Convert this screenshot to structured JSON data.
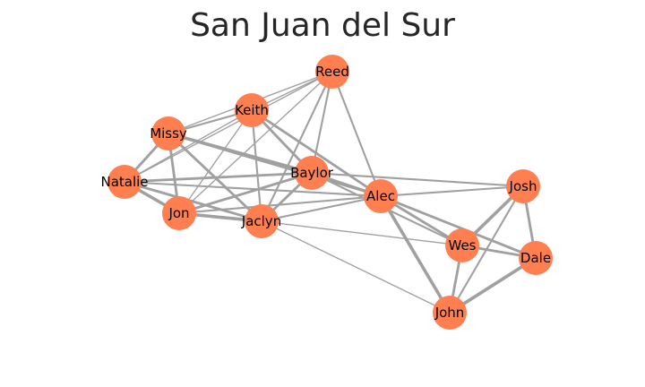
{
  "title": "San Juan del Sur",
  "colors": {
    "node_fill": "#ff7f50",
    "edge": "#a0a0a0",
    "label": "#000000",
    "title": "#262626"
  },
  "graph": {
    "nodes": [
      {
        "id": "Reed",
        "label": "Reed"
      },
      {
        "id": "Keith",
        "label": "Keith"
      },
      {
        "id": "Missy",
        "label": "Missy"
      },
      {
        "id": "Baylor",
        "label": "Baylor"
      },
      {
        "id": "Natalie",
        "label": "Natalie"
      },
      {
        "id": "Alec",
        "label": "Alec"
      },
      {
        "id": "Josh",
        "label": "Josh"
      },
      {
        "id": "Jon",
        "label": "Jon"
      },
      {
        "id": "Jaclyn",
        "label": "Jaclyn"
      },
      {
        "id": "Wes",
        "label": "Wes"
      },
      {
        "id": "Dale",
        "label": "Dale"
      },
      {
        "id": "John",
        "label": "John"
      }
    ],
    "edges": [
      {
        "source": "Reed",
        "target": "Keith",
        "weight": 1
      },
      {
        "source": "Reed",
        "target": "Missy",
        "weight": 1
      },
      {
        "source": "Reed",
        "target": "Baylor",
        "weight": 2
      },
      {
        "source": "Reed",
        "target": "Alec",
        "weight": 2
      },
      {
        "source": "Reed",
        "target": "Jaclyn",
        "weight": 2
      },
      {
        "source": "Reed",
        "target": "Jon",
        "weight": 1
      },
      {
        "source": "Reed",
        "target": "Natalie",
        "weight": 1
      },
      {
        "source": "Keith",
        "target": "Missy",
        "weight": 2
      },
      {
        "source": "Keith",
        "target": "Baylor",
        "weight": 3
      },
      {
        "source": "Keith",
        "target": "Alec",
        "weight": 3
      },
      {
        "source": "Keith",
        "target": "Jaclyn",
        "weight": 2
      },
      {
        "source": "Keith",
        "target": "Jon",
        "weight": 1
      },
      {
        "source": "Keith",
        "target": "Natalie",
        "weight": 1
      },
      {
        "source": "Missy",
        "target": "Baylor",
        "weight": 4
      },
      {
        "source": "Missy",
        "target": "Natalie",
        "weight": 3
      },
      {
        "source": "Missy",
        "target": "Jon",
        "weight": 3
      },
      {
        "source": "Missy",
        "target": "Jaclyn",
        "weight": 3
      },
      {
        "source": "Missy",
        "target": "Alec",
        "weight": 2
      },
      {
        "source": "Natalie",
        "target": "Baylor",
        "weight": 3
      },
      {
        "source": "Natalie",
        "target": "Jon",
        "weight": 4
      },
      {
        "source": "Natalie",
        "target": "Jaclyn",
        "weight": 3
      },
      {
        "source": "Natalie",
        "target": "Alec",
        "weight": 2
      },
      {
        "source": "Baylor",
        "target": "Jon",
        "weight": 3
      },
      {
        "source": "Baylor",
        "target": "Jaclyn",
        "weight": 3
      },
      {
        "source": "Baylor",
        "target": "Alec",
        "weight": 3
      },
      {
        "source": "Baylor",
        "target": "Josh",
        "weight": 2
      },
      {
        "source": "Baylor",
        "target": "Wes",
        "weight": 2
      },
      {
        "source": "Jon",
        "target": "Jaclyn",
        "weight": 4
      },
      {
        "source": "Jon",
        "target": "Alec",
        "weight": 2
      },
      {
        "source": "Jaclyn",
        "target": "Alec",
        "weight": 2
      },
      {
        "source": "Jaclyn",
        "target": "Wes",
        "weight": 1
      },
      {
        "source": "Jaclyn",
        "target": "John",
        "weight": 1
      },
      {
        "source": "Alec",
        "target": "Josh",
        "weight": 2
      },
      {
        "source": "Alec",
        "target": "Wes",
        "weight": 3
      },
      {
        "source": "Alec",
        "target": "Dale",
        "weight": 3
      },
      {
        "source": "Alec",
        "target": "John",
        "weight": 4
      },
      {
        "source": "Josh",
        "target": "Wes",
        "weight": 4
      },
      {
        "source": "Josh",
        "target": "Dale",
        "weight": 3
      },
      {
        "source": "Josh",
        "target": "John",
        "weight": 2
      },
      {
        "source": "Wes",
        "target": "Dale",
        "weight": 3
      },
      {
        "source": "Wes",
        "target": "John",
        "weight": 3
      },
      {
        "source": "Dale",
        "target": "John",
        "weight": 4
      }
    ]
  }
}
